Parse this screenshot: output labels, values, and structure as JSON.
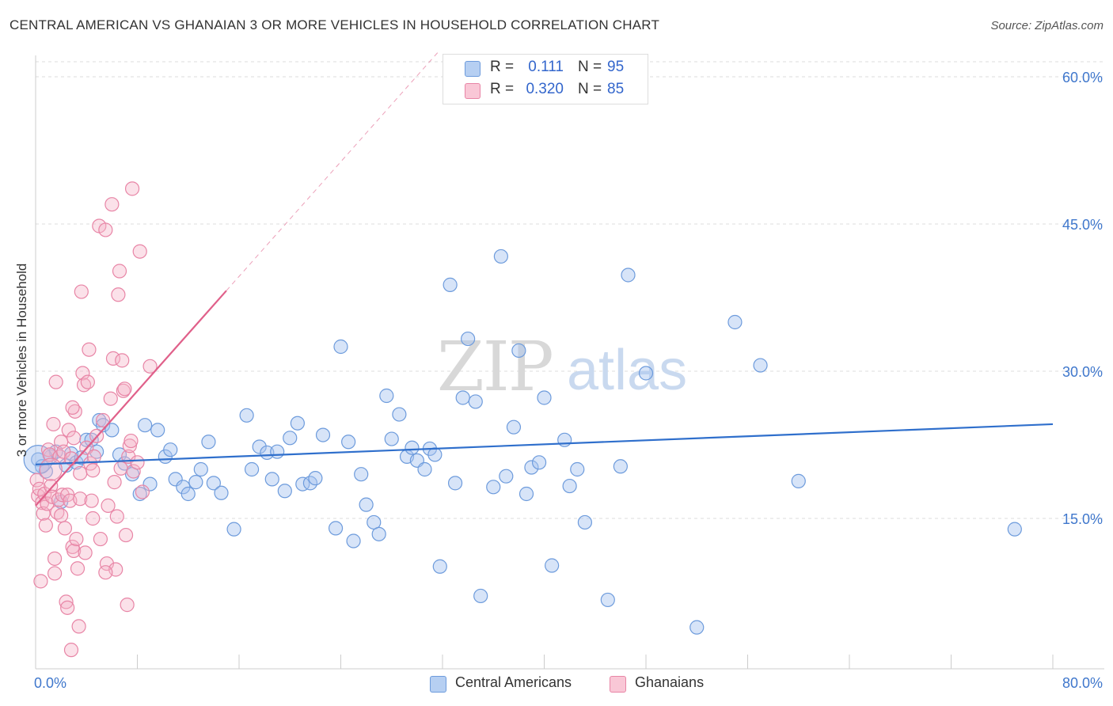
{
  "header": {
    "title": "CENTRAL AMERICAN VS GHANAIAN 3 OR MORE VEHICLES IN HOUSEHOLD CORRELATION CHART",
    "source": "Source: ZipAtlas.com"
  },
  "watermark": {
    "zip": "ZIP",
    "atlas": "atlas"
  },
  "legend_top": {
    "rows": [
      {
        "r_label": "R =",
        "r_value": "0.111",
        "n_label": "N =",
        "n_value": "95"
      },
      {
        "r_label": "R =",
        "r_value": "0.320",
        "n_label": "N =",
        "n_value": "85"
      }
    ]
  },
  "legend_bottom": {
    "items": [
      "Central Americans",
      "Ghanaians"
    ]
  },
  "colors": {
    "blue_fill": "#a7c4ef",
    "blue_stroke": "#6d9bdc",
    "blue_line": "#2f6fcc",
    "pink_fill": "#f5b3c8",
    "pink_stroke": "#e885a6",
    "pink_line": "#e0608a",
    "grid": "#dddddd",
    "tick_text": "#3f77cc"
  },
  "chart_data": {
    "type": "scatter",
    "title": "CENTRAL AMERICAN VS GHANAIAN 3 OR MORE VEHICLES IN HOUSEHOLD CORRELATION CHART",
    "xlabel": "",
    "ylabel": "3 or more Vehicles in Household",
    "xlim": [
      0,
      80
    ],
    "ylim": [
      0,
      63
    ],
    "x_tick_labels": [
      "0.0%",
      "80.0%"
    ],
    "y_ticks": [
      15,
      30,
      45,
      60
    ],
    "y_tick_labels": [
      "15.0%",
      "30.0%",
      "45.0%",
      "60.0%"
    ],
    "grid": true,
    "legend_placement": "top-center",
    "series": [
      {
        "name": "Central Americans",
        "color": "#a7c4ef",
        "trend": {
          "x": [
            0,
            80
          ],
          "y": [
            20.5,
            24.6
          ]
        },
        "points": [
          [
            0.2,
            21.0
          ],
          [
            0.5,
            20.3
          ],
          [
            0.8,
            19.8
          ],
          [
            1.2,
            21.3
          ],
          [
            1.6,
            21.8
          ],
          [
            2.0,
            16.7
          ],
          [
            2.4,
            20.4
          ],
          [
            2.8,
            21.6
          ],
          [
            3.2,
            20.7
          ],
          [
            3.6,
            21.2
          ],
          [
            4.0,
            23.0
          ],
          [
            4.4,
            23.0
          ],
          [
            4.8,
            21.8
          ],
          [
            5.0,
            25.0
          ],
          [
            5.3,
            24.5
          ],
          [
            6.0,
            24.0
          ],
          [
            6.6,
            21.5
          ],
          [
            7.0,
            20.6
          ],
          [
            7.6,
            19.5
          ],
          [
            8.2,
            17.5
          ],
          [
            8.6,
            24.5
          ],
          [
            9.0,
            18.5
          ],
          [
            9.6,
            24.0
          ],
          [
            10.2,
            21.3
          ],
          [
            10.6,
            22.0
          ],
          [
            11.0,
            19.0
          ],
          [
            11.6,
            18.2
          ],
          [
            12.0,
            17.5
          ],
          [
            12.6,
            18.7
          ],
          [
            13.0,
            20.0
          ],
          [
            13.6,
            22.8
          ],
          [
            14.0,
            18.6
          ],
          [
            14.6,
            17.6
          ],
          [
            15.6,
            13.9
          ],
          [
            16.6,
            25.5
          ],
          [
            17.0,
            20.0
          ],
          [
            17.6,
            22.3
          ],
          [
            18.2,
            21.7
          ],
          [
            18.6,
            19.0
          ],
          [
            19.0,
            21.8
          ],
          [
            19.6,
            17.8
          ],
          [
            20.0,
            23.2
          ],
          [
            20.6,
            24.7
          ],
          [
            21.0,
            18.5
          ],
          [
            21.6,
            18.6
          ],
          [
            22.0,
            19.1
          ],
          [
            22.6,
            23.5
          ],
          [
            23.6,
            14.0
          ],
          [
            24.0,
            32.5
          ],
          [
            24.6,
            22.8
          ],
          [
            25.0,
            12.7
          ],
          [
            25.6,
            19.5
          ],
          [
            26.0,
            16.4
          ],
          [
            26.6,
            14.6
          ],
          [
            27.0,
            13.4
          ],
          [
            27.6,
            27.5
          ],
          [
            28.0,
            23.1
          ],
          [
            28.6,
            25.6
          ],
          [
            29.2,
            21.3
          ],
          [
            29.6,
            22.2
          ],
          [
            30.0,
            20.9
          ],
          [
            30.6,
            20.0
          ],
          [
            31.0,
            22.1
          ],
          [
            31.4,
            21.5
          ],
          [
            31.8,
            10.1
          ],
          [
            32.6,
            38.8
          ],
          [
            33.0,
            18.6
          ],
          [
            33.6,
            27.3
          ],
          [
            34.0,
            33.3
          ],
          [
            34.6,
            26.9
          ],
          [
            35.0,
            7.1
          ],
          [
            36.0,
            18.2
          ],
          [
            36.6,
            41.7
          ],
          [
            37.0,
            19.3
          ],
          [
            37.6,
            24.3
          ],
          [
            38.0,
            32.1
          ],
          [
            38.6,
            17.5
          ],
          [
            39.0,
            20.2
          ],
          [
            39.6,
            20.7
          ],
          [
            40.0,
            27.3
          ],
          [
            40.6,
            10.2
          ],
          [
            41.6,
            23.0
          ],
          [
            42.0,
            18.3
          ],
          [
            42.6,
            20.0
          ],
          [
            43.2,
            14.6
          ],
          [
            45.0,
            6.7
          ],
          [
            46.0,
            20.3
          ],
          [
            46.6,
            39.8
          ],
          [
            48.0,
            29.8
          ],
          [
            52.0,
            3.9
          ],
          [
            55.0,
            35.0
          ],
          [
            57.0,
            30.6
          ],
          [
            60.0,
            18.8
          ],
          [
            77.0,
            13.9
          ],
          [
            43.5,
            58.0
          ]
        ]
      },
      {
        "name": "Ghanaians",
        "color": "#f5b3c8",
        "trend": {
          "x": [
            0,
            15
          ],
          "y": [
            16.3,
            38.2
          ]
        },
        "points": [
          [
            0.1,
            18.9
          ],
          [
            0.2,
            17.3
          ],
          [
            0.3,
            18.0
          ],
          [
            0.4,
            8.6
          ],
          [
            0.5,
            16.6
          ],
          [
            0.6,
            15.5
          ],
          [
            0.7,
            17.5
          ],
          [
            0.8,
            14.3
          ],
          [
            0.9,
            16.5
          ],
          [
            1.0,
            22.0
          ],
          [
            1.1,
            21.5
          ],
          [
            1.2,
            18.3
          ],
          [
            1.3,
            17.2
          ],
          [
            1.4,
            24.6
          ],
          [
            1.5,
            9.4
          ],
          [
            1.5,
            10.9
          ],
          [
            1.6,
            28.9
          ],
          [
            1.7,
            15.6
          ],
          [
            1.8,
            16.9
          ],
          [
            1.9,
            21.3
          ],
          [
            2.0,
            15.3
          ],
          [
            2.0,
            22.8
          ],
          [
            2.1,
            17.4
          ],
          [
            2.2,
            21.8
          ],
          [
            2.3,
            14.0
          ],
          [
            2.4,
            6.5
          ],
          [
            2.5,
            5.9
          ],
          [
            2.5,
            17.4
          ],
          [
            2.6,
            24.0
          ],
          [
            2.7,
            16.8
          ],
          [
            2.8,
            1.6
          ],
          [
            2.8,
            21.1
          ],
          [
            2.9,
            12.1
          ],
          [
            3.0,
            23.2
          ],
          [
            3.0,
            11.7
          ],
          [
            3.1,
            25.9
          ],
          [
            3.2,
            12.9
          ],
          [
            3.3,
            9.9
          ],
          [
            3.4,
            4.0
          ],
          [
            3.5,
            17.0
          ],
          [
            3.6,
            38.1
          ],
          [
            3.7,
            29.8
          ],
          [
            3.8,
            28.6
          ],
          [
            3.9,
            11.5
          ],
          [
            4.0,
            22.2
          ],
          [
            4.1,
            28.9
          ],
          [
            4.2,
            32.2
          ],
          [
            4.3,
            20.6
          ],
          [
            4.4,
            16.8
          ],
          [
            4.5,
            15.0
          ],
          [
            4.6,
            21.3
          ],
          [
            4.8,
            23.4
          ],
          [
            5.0,
            44.8
          ],
          [
            5.1,
            12.9
          ],
          [
            5.3,
            25.0
          ],
          [
            5.5,
            44.4
          ],
          [
            5.6,
            10.4
          ],
          [
            5.7,
            16.3
          ],
          [
            5.9,
            27.2
          ],
          [
            6.0,
            47.0
          ],
          [
            6.1,
            31.3
          ],
          [
            6.2,
            18.7
          ],
          [
            6.3,
            9.8
          ],
          [
            6.4,
            15.2
          ],
          [
            6.5,
            37.8
          ],
          [
            6.6,
            40.2
          ],
          [
            6.7,
            20.1
          ],
          [
            6.8,
            31.1
          ],
          [
            6.9,
            28.0
          ],
          [
            7.0,
            28.2
          ],
          [
            7.1,
            13.3
          ],
          [
            7.2,
            6.2
          ],
          [
            7.3,
            21.3
          ],
          [
            7.4,
            22.4
          ],
          [
            7.5,
            22.9
          ],
          [
            7.6,
            48.6
          ],
          [
            7.7,
            19.8
          ],
          [
            8.0,
            20.7
          ],
          [
            8.2,
            42.2
          ],
          [
            8.4,
            17.7
          ],
          [
            2.9,
            26.3
          ],
          [
            3.5,
            19.6
          ],
          [
            4.5,
            19.9
          ],
          [
            5.5,
            9.5
          ],
          [
            9.0,
            30.5
          ]
        ]
      }
    ]
  }
}
